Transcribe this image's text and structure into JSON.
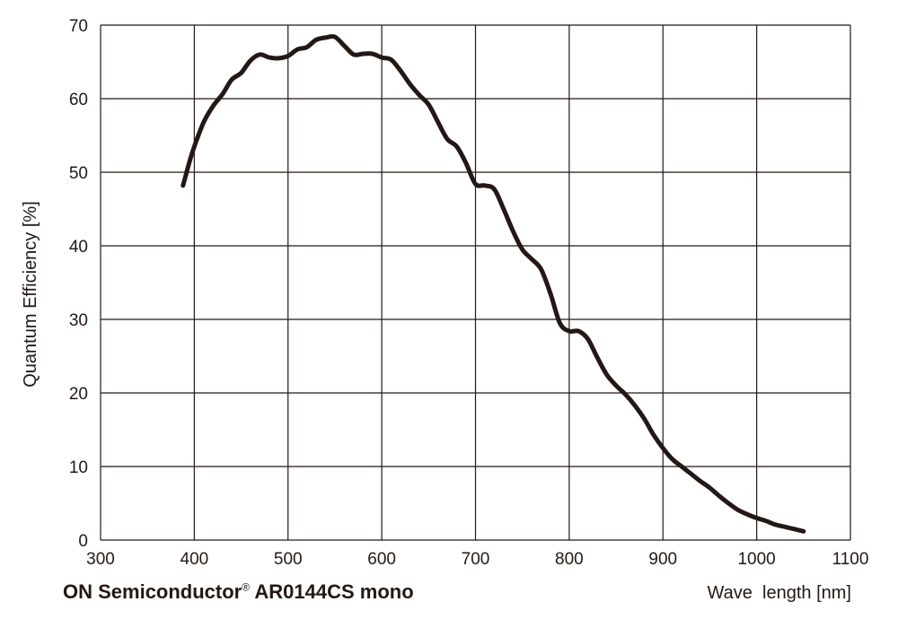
{
  "chart_data": {
    "type": "line",
    "title_main": "ON Semiconductor",
    "title_mark": "®",
    "title_rest": " AR0144CS mono",
    "xlabel": "Wave  length [nm]",
    "ylabel": "Quantum Efficiency [%]",
    "xlim": [
      300,
      1100
    ],
    "ylim": [
      0,
      70
    ],
    "x_ticks": [
      "300",
      "400",
      "500",
      "600",
      "700",
      "800",
      "900",
      "1000",
      "1100"
    ],
    "y_ticks": [
      "0",
      "10",
      "20",
      "30",
      "40",
      "50",
      "60",
      "70"
    ],
    "grid": true,
    "line_color": "#231815",
    "grid_color": "#231815",
    "series": [
      {
        "x": [
          388,
          395,
          400,
          410,
          420,
          430,
          440,
          450,
          460,
          470,
          480,
          490,
          500,
          510,
          520,
          530,
          540,
          550,
          560,
          570,
          580,
          590,
          600,
          610,
          620,
          630,
          640,
          650,
          660,
          670,
          680,
          690,
          700,
          710,
          720,
          730,
          740,
          750,
          760,
          770,
          780,
          790,
          800,
          810,
          820,
          830,
          840,
          850,
          860,
          870,
          880,
          890,
          900,
          910,
          920,
          930,
          940,
          950,
          960,
          970,
          980,
          990,
          1000,
          1010,
          1020,
          1030,
          1040,
          1050
        ],
        "y": [
          48.2,
          51.5,
          53.5,
          56.8,
          59.0,
          60.6,
          62.6,
          63.5,
          65.2,
          66.0,
          65.6,
          65.5,
          65.8,
          66.7,
          67.0,
          68.0,
          68.3,
          68.4,
          67.2,
          66.0,
          66.1,
          66.1,
          65.6,
          65.3,
          63.8,
          62.0,
          60.5,
          59.2,
          56.8,
          54.5,
          53.5,
          51.2,
          48.4,
          48.2,
          47.7,
          45.0,
          42.0,
          39.5,
          38.2,
          36.8,
          33.5,
          29.5,
          28.4,
          28.4,
          27.3,
          24.8,
          22.5,
          21.0,
          19.8,
          18.3,
          16.5,
          14.3,
          12.5,
          11.0,
          10.0,
          9.0,
          8.0,
          7.1,
          6.0,
          5.0,
          4.1,
          3.5,
          3.0,
          2.6,
          2.1,
          1.8,
          1.5,
          1.2
        ]
      }
    ]
  }
}
